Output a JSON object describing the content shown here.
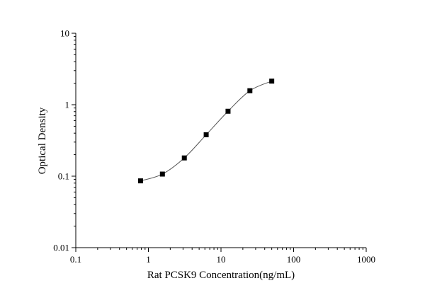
{
  "chart_data": {
    "type": "scatter",
    "title": "",
    "xlabel": "Rat PCSK9 Concentration(ng/mL)",
    "ylabel": "Optical Density",
    "x_scale": "log",
    "y_scale": "log",
    "xlim": [
      0.1,
      1000
    ],
    "ylim": [
      0.01,
      10
    ],
    "x_ticks": [
      0.1,
      1,
      10,
      100,
      1000
    ],
    "x_tick_labels": [
      "0.1",
      "1",
      "10",
      "100",
      "1000"
    ],
    "y_ticks": [
      0.01,
      0.1,
      1,
      10
    ],
    "y_tick_labels": [
      "0.01",
      "0.1",
      "1",
      "10"
    ],
    "grid": false,
    "legend": "none",
    "series": [
      {
        "marker": "square",
        "line": "smooth",
        "color": "#000000",
        "line_color": "#555555",
        "x": [
          0.78,
          1.56,
          3.125,
          6.25,
          12.5,
          25,
          50
        ],
        "y": [
          0.086,
          0.107,
          0.18,
          0.38,
          0.81,
          1.57,
          2.14
        ]
      }
    ]
  }
}
